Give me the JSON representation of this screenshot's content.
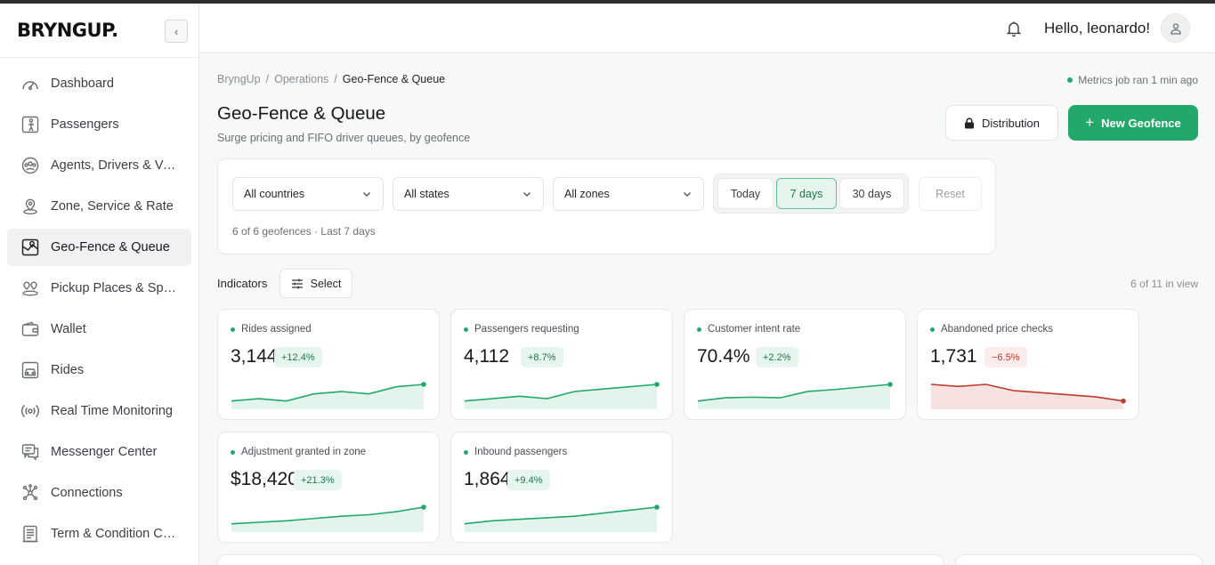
{
  "brand": {
    "logo_text": "BRYNGUP."
  },
  "sidebar": {
    "collapse_glyph": "‹",
    "items": [
      {
        "label": "Dashboard",
        "icon": "speedometer-icon"
      },
      {
        "label": "Passengers",
        "icon": "passenger-icon"
      },
      {
        "label": "Agents, Drivers & Vehicles",
        "icon": "people-group-icon"
      },
      {
        "label": "Zone, Service & Rate",
        "icon": "location-pin-icon"
      },
      {
        "label": "Geo-Fence & Queue",
        "icon": "map-icon",
        "active": true
      },
      {
        "label": "Pickup Places & Spots",
        "icon": "pickup-places-icon"
      },
      {
        "label": "Wallet",
        "icon": "wallet-icon"
      },
      {
        "label": "Rides",
        "icon": "car-icon"
      },
      {
        "label": "Real Time Monitoring",
        "icon": "broadcast-icon"
      },
      {
        "label": "Messenger Center",
        "icon": "chat-icon"
      },
      {
        "label": "Connections",
        "icon": "network-icon"
      },
      {
        "label": "Term & Condition Center",
        "icon": "document-icon"
      }
    ]
  },
  "header": {
    "greeting": "Hello, leonardo!"
  },
  "breadcrumb": {
    "items": [
      "BryngUp",
      "Operations"
    ],
    "current": "Geo-Fence & Queue",
    "separator": "/"
  },
  "metrics_job": "Metrics job ran 1 min ago",
  "page": {
    "title": "Geo-Fence & Queue",
    "subtitle": "Surge pricing and FIFO driver queues, by geofence"
  },
  "actions": {
    "distribution_label": "Distribution",
    "new_geofence_label": "New Geofence",
    "new_geofence_glyph": "+"
  },
  "filters": {
    "country": "All countries",
    "state": "All states",
    "zone": "All zones",
    "ranges": [
      "Today",
      "7 days",
      "30 days"
    ],
    "active_range": "7 days",
    "reset_label": "Reset",
    "summary": "6 of 6 geofences · Last 7 days"
  },
  "indicators": {
    "label": "Indicators",
    "select_label": "Select",
    "in_view": "6 of 11 in view",
    "kpis": [
      {
        "name": "Rides assigned",
        "value": "3,144",
        "delta": "+12.4%",
        "trend": "up",
        "series": [
          3,
          4,
          3,
          6,
          7,
          6,
          9,
          10
        ]
      },
      {
        "name": "Passengers requesting",
        "value": "4,112",
        "delta": "+8.7%",
        "trend": "up",
        "series": [
          3,
          4,
          5,
          4,
          7,
          8,
          9,
          10
        ]
      },
      {
        "name": "Customer intent rate",
        "value": "70.4%",
        "delta": "+2.2%",
        "trend": "up",
        "series": [
          5,
          5.5,
          5.6,
          5.5,
          6.5,
          6.8,
          7.2,
          7.6
        ]
      },
      {
        "name": "Abandoned price checks",
        "value": "1,731",
        "delta": "−6.5%",
        "trend": "down",
        "series": [
          9,
          8.5,
          9,
          7.5,
          7,
          6.5,
          6,
          5
        ]
      },
      {
        "name": "Adjustment granted in zone",
        "value": "$18,420",
        "delta": "+21.3%",
        "trend": "up",
        "series": [
          2,
          3,
          4,
          5.5,
          7,
          8,
          10,
          13
        ]
      },
      {
        "name": "Inbound passengers",
        "value": "1,864",
        "delta": "+9.4%",
        "trend": "up",
        "series": [
          3,
          4,
          4.5,
          5,
          5.5,
          6.5,
          7.5,
          8.5
        ]
      }
    ]
  },
  "colors": {
    "accent": "#23a86b",
    "negative": "#c0392b"
  }
}
